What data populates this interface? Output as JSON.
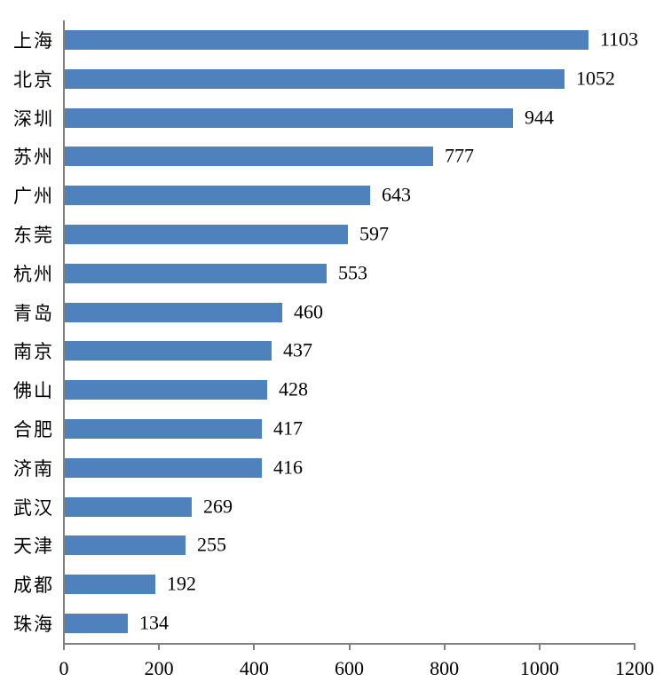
{
  "chart_data": {
    "type": "bar",
    "orientation": "horizontal",
    "title": "",
    "xlabel": "",
    "ylabel": "",
    "categories": [
      "上海",
      "北京",
      "深圳",
      "苏州",
      "广州",
      "东莞",
      "杭州",
      "青岛",
      "南京",
      "佛山",
      "合肥",
      "济南",
      "武汉",
      "天津",
      "成都",
      "珠海"
    ],
    "values": [
      1103,
      1052,
      944,
      777,
      643,
      597,
      553,
      460,
      437,
      428,
      417,
      416,
      269,
      255,
      192,
      134
    ],
    "value_labels_shown": true,
    "xlim": [
      0,
      1200
    ],
    "x_ticks": [
      0,
      200,
      400,
      600,
      800,
      1000,
      1200
    ],
    "grid": false,
    "legend": false,
    "bar_color": "#4F81BD",
    "axis_color": "#808080",
    "text_color": "#000000",
    "background_color": "#ffffff"
  }
}
